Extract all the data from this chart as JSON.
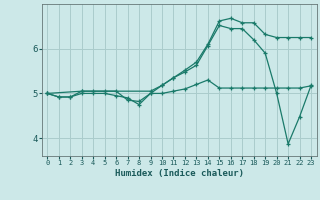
{
  "xlabel": "Humidex (Indice chaleur)",
  "bg_color": "#cce8e8",
  "grid_color": "#aacccc",
  "line_color": "#1a7a6a",
  "xlim": [
    -0.5,
    23.5
  ],
  "ylim": [
    3.6,
    7.0
  ],
  "xticks": [
    0,
    1,
    2,
    3,
    4,
    5,
    6,
    7,
    8,
    9,
    10,
    11,
    12,
    13,
    14,
    15,
    16,
    17,
    18,
    19,
    20,
    21,
    22,
    23
  ],
  "yticks": [
    4,
    5,
    6
  ],
  "line1_x": [
    0,
    1,
    2,
    3,
    4,
    5,
    6,
    7,
    8,
    9,
    10,
    11,
    12,
    13,
    14,
    15,
    16,
    17,
    18,
    19,
    20,
    21,
    22,
    23
  ],
  "line1_y": [
    5.0,
    4.92,
    4.92,
    5.0,
    5.0,
    5.0,
    4.95,
    4.9,
    4.75,
    5.0,
    5.0,
    5.05,
    5.1,
    5.2,
    5.3,
    5.12,
    5.12,
    5.12,
    5.12,
    5.12,
    5.12,
    5.12,
    5.12,
    5.17
  ],
  "line2_x": [
    0,
    1,
    2,
    3,
    4,
    5,
    6,
    7,
    8,
    9,
    10,
    11,
    12,
    13,
    14,
    15,
    16,
    17,
    18,
    19,
    20,
    21,
    22,
    23
  ],
  "line2_y": [
    5.0,
    4.92,
    4.92,
    5.05,
    5.05,
    5.05,
    5.05,
    4.85,
    4.82,
    5.0,
    5.18,
    5.35,
    5.48,
    5.63,
    6.07,
    6.52,
    6.45,
    6.45,
    6.2,
    5.9,
    5.0,
    3.87,
    4.48,
    5.18
  ],
  "line3_x": [
    0,
    3,
    9,
    10,
    11,
    12,
    13,
    14,
    15,
    16,
    17,
    18,
    19,
    20,
    21,
    22,
    23
  ],
  "line3_y": [
    5.0,
    5.05,
    5.05,
    5.18,
    5.35,
    5.52,
    5.7,
    6.1,
    6.62,
    6.68,
    6.58,
    6.58,
    6.32,
    6.25,
    6.25,
    6.25,
    6.25
  ]
}
